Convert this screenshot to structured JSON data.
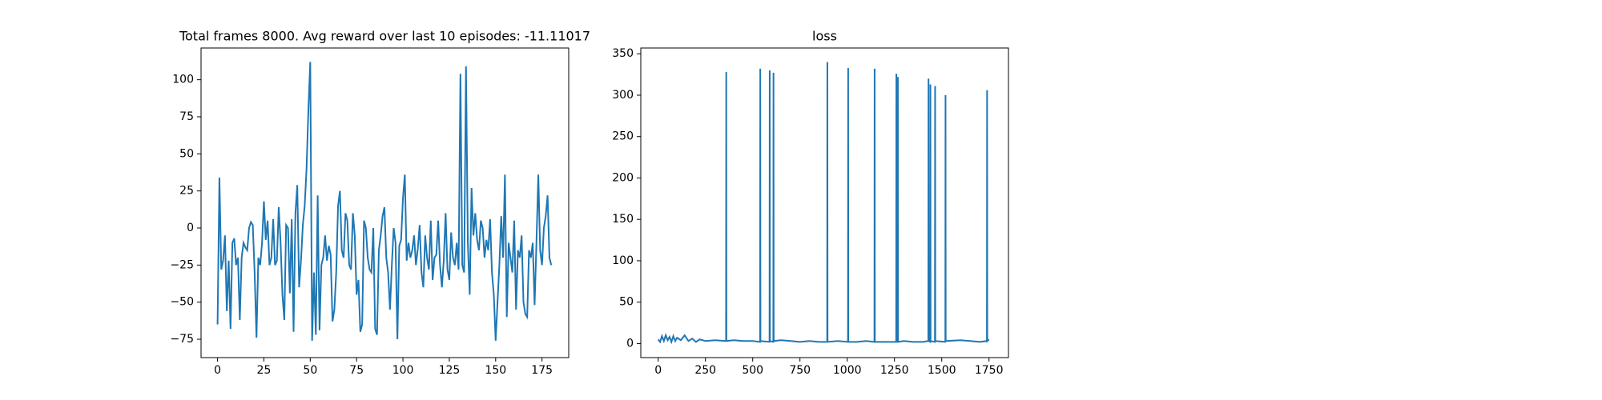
{
  "chart_data": [
    {
      "type": "line",
      "title": "Total frames 8000. Avg reward over last 10 episodes: -11.11017",
      "color": "#1f77b4",
      "x": [
        0,
        1,
        2,
        3,
        4,
        5,
        6,
        7,
        8,
        9,
        10,
        11,
        12,
        13,
        14,
        15,
        16,
        17,
        18,
        19,
        20,
        21,
        22,
        23,
        24,
        25,
        26,
        27,
        28,
        29,
        30,
        31,
        32,
        33,
        34,
        35,
        36,
        37,
        38,
        39,
        40,
        41,
        42,
        43,
        44,
        45,
        46,
        47,
        48,
        49,
        50,
        51,
        52,
        53,
        54,
        55,
        56,
        57,
        58,
        59,
        60,
        61,
        62,
        63,
        64,
        65,
        66,
        67,
        68,
        69,
        70,
        71,
        72,
        73,
        74,
        75,
        76,
        77,
        78,
        79,
        80,
        81,
        82,
        83,
        84,
        85,
        86,
        87,
        88,
        89,
        90,
        91,
        92,
        93,
        94,
        95,
        96,
        97,
        98,
        99,
        100,
        101,
        102,
        103,
        104,
        105,
        106,
        107,
        108,
        109,
        110,
        111,
        112,
        113,
        114,
        115,
        116,
        117,
        118,
        119,
        120,
        121,
        122,
        123,
        124,
        125,
        126,
        127,
        128,
        129,
        130,
        131,
        132,
        133,
        134,
        135,
        136,
        137,
        138,
        139,
        140,
        141,
        142,
        143,
        144,
        145,
        146,
        147,
        148,
        149,
        150,
        151,
        152,
        153,
        154,
        155,
        156,
        157,
        158,
        159,
        160,
        161,
        162,
        163,
        164,
        165,
        166,
        167,
        168,
        169,
        170,
        171,
        172,
        173,
        174,
        175,
        176,
        177,
        178,
        179,
        180
      ],
      "values": [
        -65,
        34,
        -28,
        -22,
        -5,
        -56,
        -22,
        -68,
        -10,
        -7,
        -25,
        -20,
        -62,
        -20,
        -10,
        -13,
        -15,
        0,
        4,
        2,
        -30,
        -74,
        -20,
        -25,
        -10,
        18,
        -8,
        5,
        -25,
        -20,
        6,
        -25,
        -22,
        14,
        -10,
        -45,
        -62,
        2,
        0,
        -44,
        6,
        -70,
        10,
        29,
        -40,
        -22,
        2,
        15,
        40,
        80,
        112,
        -76,
        -30,
        -72,
        22,
        -69,
        -25,
        -20,
        -5,
        -22,
        -12,
        -18,
        -63,
        -55,
        -30,
        15,
        25,
        -15,
        -20,
        10,
        5,
        -25,
        -28,
        10,
        -5,
        -45,
        -35,
        -70,
        -65,
        5,
        0,
        -20,
        -28,
        -30,
        0,
        -68,
        -72,
        -15,
        -5,
        8,
        14,
        -20,
        -30,
        -55,
        -25,
        0,
        -10,
        -75,
        -12,
        -8,
        20,
        36,
        -22,
        -10,
        -20,
        -15,
        -5,
        -25,
        -14,
        2,
        -30,
        -40,
        -5,
        -20,
        -28,
        5,
        -35,
        -20,
        -18,
        5,
        -25,
        -40,
        -22,
        10,
        -28,
        -35,
        -3,
        -20,
        -25,
        -10,
        -28,
        104,
        -25,
        -30,
        109,
        -10,
        -45,
        27,
        -5,
        10,
        -8,
        -15,
        5,
        0,
        -20,
        -8,
        -15,
        6,
        -30,
        -45,
        -76,
        -50,
        -25,
        8,
        -20,
        36,
        -60,
        -10,
        -20,
        -30,
        5,
        -55,
        -15,
        -20,
        -5,
        -50,
        -58,
        -60,
        -15,
        -20,
        -10,
        -52,
        -10,
        36,
        -15,
        -25,
        0,
        8,
        22,
        -20,
        -25
      ],
      "xlim": [
        -8.9,
        189.4
      ],
      "ylim": [
        -87.4,
        121.4
      ],
      "xticks": [
        0,
        25,
        50,
        75,
        100,
        125,
        150,
        175
      ],
      "yticks": [
        {
          "value": -75,
          "label": "−75"
        },
        {
          "value": -50,
          "label": "−50"
        },
        {
          "value": -25,
          "label": "−25"
        },
        0,
        25,
        50,
        75,
        100
      ]
    },
    {
      "type": "line",
      "title": "loss",
      "color": "#1f77b4",
      "x": [
        0,
        10,
        20,
        30,
        40,
        50,
        60,
        70,
        80,
        90,
        100,
        120,
        140,
        160,
        180,
        200,
        220,
        250,
        300,
        359,
        360,
        361,
        400,
        450,
        500,
        539,
        540,
        541,
        589,
        590,
        591,
        609,
        610,
        611,
        650,
        700,
        750,
        800,
        850,
        894,
        895,
        896,
        950,
        1004,
        1005,
        1006,
        1050,
        1100,
        1144,
        1145,
        1146,
        1200,
        1259,
        1260,
        1261,
        1267,
        1268,
        1269,
        1300,
        1350,
        1400,
        1429,
        1430,
        1431,
        1439,
        1440,
        1441,
        1464,
        1465,
        1466,
        1519,
        1520,
        1521,
        1600,
        1650,
        1700,
        1739,
        1740,
        1741,
        1750
      ],
      "values": [
        5,
        2,
        9,
        3,
        10,
        4,
        8,
        2,
        9,
        3,
        7,
        4,
        10,
        3,
        6,
        2,
        5,
        3,
        4,
        3,
        328,
        3,
        4,
        3,
        3,
        2,
        332,
        3,
        2,
        330,
        3,
        2,
        327,
        3,
        4,
        3,
        2,
        3,
        2,
        2,
        340,
        2,
        3,
        2,
        333,
        2,
        2,
        3,
        2,
        332,
        2,
        2,
        2,
        326,
        2,
        2,
        322,
        2,
        3,
        2,
        2,
        3,
        320,
        3,
        2,
        313,
        3,
        2,
        311,
        3,
        2,
        300,
        3,
        4,
        3,
        2,
        3,
        306,
        3,
        5
      ],
      "xlim": [
        -92,
        1853
      ],
      "ylim": [
        -17,
        357
      ],
      "xticks": [
        0,
        250,
        500,
        750,
        1000,
        1250,
        1500,
        1750
      ],
      "yticks": [
        0,
        50,
        100,
        150,
        200,
        250,
        300,
        350
      ]
    }
  ]
}
